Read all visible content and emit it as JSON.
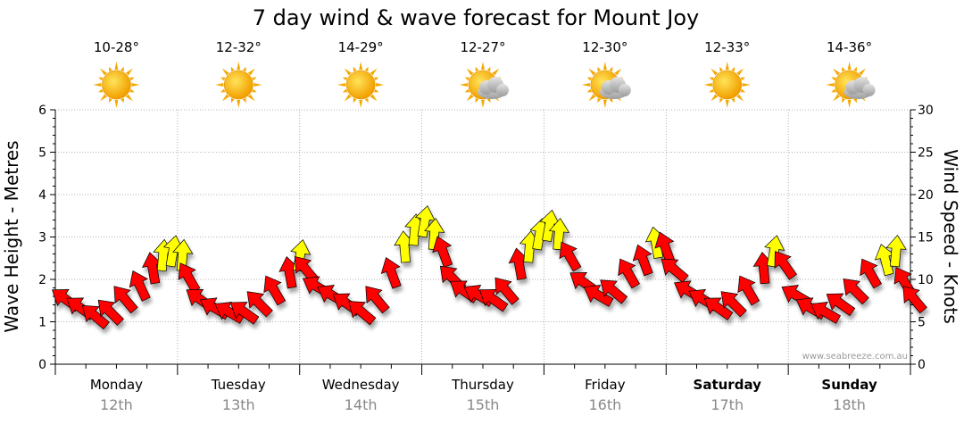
{
  "title": "7 day wind & wave forecast for Mount Joy",
  "watermark": "www.seabreeze.com.au",
  "colors": {
    "strong_wind": "#ff0000",
    "light_wind": "#ffff00",
    "sun": "#ffb000",
    "cloud": "#b8b8b8",
    "grid": "#9a9a9a"
  },
  "days": [
    {
      "name": "Monday",
      "date": "12th",
      "temp": "10-28°",
      "icon": "sun-icon",
      "bold": false
    },
    {
      "name": "Tuesday",
      "date": "13th",
      "temp": "12-32°",
      "icon": "sun-icon",
      "bold": false
    },
    {
      "name": "Wednesday",
      "date": "14th",
      "temp": "14-29°",
      "icon": "sun-icon",
      "bold": false
    },
    {
      "name": "Thursday",
      "date": "15th",
      "temp": "12-27°",
      "icon": "sun-cloud-icon",
      "bold": false
    },
    {
      "name": "Friday",
      "date": "16th",
      "temp": "12-30°",
      "icon": "sun-cloud-icon",
      "bold": false
    },
    {
      "name": "Saturday",
      "date": "17th",
      "temp": "12-33°",
      "icon": "sun-icon",
      "bold": true
    },
    {
      "name": "Sunday",
      "date": "18th",
      "temp": "14-36°",
      "icon": "sun-cloud-icon",
      "bold": true
    }
  ],
  "chart_data": {
    "type": "scatter",
    "title": "7 day wind & wave forecast for Mount Joy",
    "ylabel_left": "Wave Height - Metres",
    "ylabel_right": "Wind Speed - Knots",
    "ylim_left": [
      0,
      6
    ],
    "ylim_right": [
      0,
      30
    ],
    "yticks_left": [
      "0",
      "1",
      "2",
      "3",
      "4",
      "5",
      "6"
    ],
    "yticks_right": [
      "0",
      "5",
      "10",
      "15",
      "20",
      "25",
      "30"
    ],
    "grid": true,
    "x_unit": "days from Monday 12th 00:00",
    "series": [
      {
        "points": [
          {
            "t": 0.1,
            "wind": 7.5,
            "dir": 305
          },
          {
            "t": 0.22,
            "wind": 6.5,
            "dir": 305
          },
          {
            "t": 0.34,
            "wind": 5.5,
            "dir": 310
          },
          {
            "t": 0.46,
            "wind": 6.0,
            "dir": 315
          },
          {
            "t": 0.58,
            "wind": 7.5,
            "dir": 320
          },
          {
            "t": 0.7,
            "wind": 9.0,
            "dir": 335
          },
          {
            "t": 0.8,
            "wind": 11.0,
            "dir": 350
          },
          {
            "t": 0.88,
            "wind": 12.5,
            "dir": 5
          },
          {
            "t": 0.96,
            "wind": 13.0,
            "dir": 10
          },
          {
            "t": 1.04,
            "wind": 12.5,
            "dir": 5
          },
          {
            "t": 1.1,
            "wind": 10.0,
            "dir": 330
          },
          {
            "t": 1.2,
            "wind": 7.5,
            "dir": 305
          },
          {
            "t": 1.32,
            "wind": 6.5,
            "dir": 300
          },
          {
            "t": 1.44,
            "wind": 6.0,
            "dir": 300
          },
          {
            "t": 1.56,
            "wind": 6.0,
            "dir": 305
          },
          {
            "t": 1.68,
            "wind": 7.0,
            "dir": 315
          },
          {
            "t": 1.8,
            "wind": 8.5,
            "dir": 330
          },
          {
            "t": 1.92,
            "wind": 10.5,
            "dir": 350
          },
          {
            "t": 2.0,
            "wind": 12.5,
            "dir": 10
          },
          {
            "t": 2.06,
            "wind": 11.0,
            "dir": 320
          },
          {
            "t": 2.16,
            "wind": 9.0,
            "dir": 300
          },
          {
            "t": 2.28,
            "wind": 8.0,
            "dir": 300
          },
          {
            "t": 2.4,
            "wind": 7.0,
            "dir": 305
          },
          {
            "t": 2.52,
            "wind": 6.0,
            "dir": 310
          },
          {
            "t": 2.64,
            "wind": 7.5,
            "dir": 320
          },
          {
            "t": 2.76,
            "wind": 10.5,
            "dir": 340
          },
          {
            "t": 2.86,
            "wind": 13.5,
            "dir": 355
          },
          {
            "t": 2.94,
            "wind": 15.5,
            "dir": 5
          },
          {
            "t": 3.02,
            "wind": 16.5,
            "dir": 10
          },
          {
            "t": 3.1,
            "wind": 15.0,
            "dir": 5
          },
          {
            "t": 3.18,
            "wind": 13.0,
            "dir": 340
          },
          {
            "t": 3.26,
            "wind": 10.0,
            "dir": 315
          },
          {
            "t": 3.36,
            "wind": 8.5,
            "dir": 305
          },
          {
            "t": 3.48,
            "wind": 8.0,
            "dir": 300
          },
          {
            "t": 3.6,
            "wind": 7.5,
            "dir": 305
          },
          {
            "t": 3.7,
            "wind": 8.5,
            "dir": 320
          },
          {
            "t": 3.8,
            "wind": 11.5,
            "dir": 350
          },
          {
            "t": 3.88,
            "wind": 13.5,
            "dir": 5
          },
          {
            "t": 3.96,
            "wind": 15.0,
            "dir": 10
          },
          {
            "t": 4.04,
            "wind": 16.0,
            "dir": 10
          },
          {
            "t": 4.12,
            "wind": 15.0,
            "dir": 5
          },
          {
            "t": 4.22,
            "wind": 12.5,
            "dir": 330
          },
          {
            "t": 4.34,
            "wind": 9.5,
            "dir": 305
          },
          {
            "t": 4.46,
            "wind": 8.0,
            "dir": 300
          },
          {
            "t": 4.58,
            "wind": 8.5,
            "dir": 310
          },
          {
            "t": 4.7,
            "wind": 10.5,
            "dir": 330
          },
          {
            "t": 4.82,
            "wind": 12.0,
            "dir": 340
          },
          {
            "t": 4.92,
            "wind": 14.0,
            "dir": 350
          },
          {
            "t": 5.0,
            "wind": 13.5,
            "dir": 340
          },
          {
            "t": 5.08,
            "wind": 11.0,
            "dir": 310
          },
          {
            "t": 5.2,
            "wind": 8.5,
            "dir": 300
          },
          {
            "t": 5.32,
            "wind": 7.5,
            "dir": 300
          },
          {
            "t": 5.44,
            "wind": 6.5,
            "dir": 305
          },
          {
            "t": 5.56,
            "wind": 7.0,
            "dir": 315
          },
          {
            "t": 5.68,
            "wind": 8.5,
            "dir": 330
          },
          {
            "t": 5.8,
            "wind": 11.0,
            "dir": 355
          },
          {
            "t": 5.88,
            "wind": 13.0,
            "dir": 10
          },
          {
            "t": 5.98,
            "wind": 11.5,
            "dir": 325
          },
          {
            "t": 6.08,
            "wind": 8.0,
            "dir": 300
          },
          {
            "t": 6.2,
            "wind": 6.5,
            "dir": 300
          },
          {
            "t": 6.32,
            "wind": 6.0,
            "dir": 300
          },
          {
            "t": 6.44,
            "wind": 7.0,
            "dir": 305
          },
          {
            "t": 6.56,
            "wind": 8.5,
            "dir": 315
          },
          {
            "t": 6.68,
            "wind": 10.5,
            "dir": 330
          },
          {
            "t": 6.8,
            "wind": 12.0,
            "dir": 345
          },
          {
            "t": 6.88,
            "wind": 13.0,
            "dir": 5
          },
          {
            "t": 6.96,
            "wind": 9.5,
            "dir": 330
          },
          {
            "t": 7.04,
            "wind": 7.5,
            "dir": 320
          }
        ]
      }
    ]
  }
}
